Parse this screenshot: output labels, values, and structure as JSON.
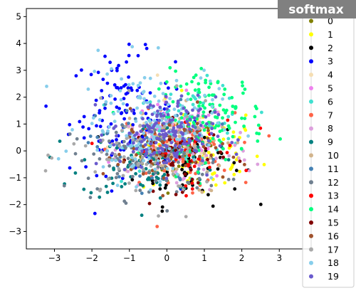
{
  "chart_data": {
    "type": "scatter",
    "title": "softmax",
    "xlabel": "",
    "ylabel": "",
    "xlim": [
      -3.75,
      3.85
    ],
    "ylim": [
      -3.65,
      5.3
    ],
    "xticks": [
      -3,
      -2,
      -1,
      0,
      1,
      2,
      3
    ],
    "yticks": [
      -3,
      -2,
      -1,
      0,
      1,
      2,
      3,
      4,
      5
    ],
    "grid": false,
    "legend_placement": "right",
    "series": [
      {
        "name": "0",
        "color": "#808000",
        "center": [
          0.2,
          0.0
        ],
        "spread": [
          0.55,
          0.6
        ],
        "count": 70
      },
      {
        "name": "1",
        "color": "#ffff00",
        "center": [
          0.9,
          0.0
        ],
        "spread": [
          0.8,
          0.9
        ],
        "count": 70
      },
      {
        "name": "2",
        "color": "#000000",
        "center": [
          0.6,
          -0.4
        ],
        "spread": [
          0.7,
          0.8
        ],
        "count": 70
      },
      {
        "name": "3",
        "color": "#0000ff",
        "center": [
          -1.2,
          1.4
        ],
        "spread": [
          0.7,
          1.1
        ],
        "count": 120
      },
      {
        "name": "4",
        "color": "#f5deb3",
        "center": [
          0.1,
          0.2
        ],
        "spread": [
          0.8,
          0.8
        ],
        "count": 60
      },
      {
        "name": "5",
        "color": "#ee82ee",
        "center": [
          0.3,
          0.3
        ],
        "spread": [
          0.7,
          0.8
        ],
        "count": 50
      },
      {
        "name": "6",
        "color": "#40e0d0",
        "center": [
          0.6,
          0.9
        ],
        "spread": [
          0.8,
          0.8
        ],
        "count": 80
      },
      {
        "name": "7",
        "color": "#ff6347",
        "center": [
          0.2,
          0.0
        ],
        "spread": [
          0.8,
          0.7
        ],
        "count": 60
      },
      {
        "name": "8",
        "color": "#dda0dd",
        "center": [
          0.5,
          0.0
        ],
        "spread": [
          0.9,
          0.8
        ],
        "count": 70
      },
      {
        "name": "9",
        "color": "#008080",
        "center": [
          -0.5,
          -0.4
        ],
        "spread": [
          0.9,
          0.7
        ],
        "count": 80
      },
      {
        "name": "10",
        "color": "#d2b48c",
        "center": [
          0.0,
          0.0
        ],
        "spread": [
          0.8,
          0.8
        ],
        "count": 60
      },
      {
        "name": "11",
        "color": "#4682b4",
        "center": [
          -0.3,
          0.2
        ],
        "spread": [
          0.8,
          0.8
        ],
        "count": 80
      },
      {
        "name": "12",
        "color": "#708090",
        "center": [
          -0.5,
          -0.4
        ],
        "spread": [
          1.0,
          0.7
        ],
        "count": 90
      },
      {
        "name": "13",
        "color": "#ff0000",
        "center": [
          0.4,
          0.0
        ],
        "spread": [
          0.8,
          0.7
        ],
        "count": 40
      },
      {
        "name": "14",
        "color": "#00ff7f",
        "center": [
          1.2,
          1.3
        ],
        "spread": [
          0.7,
          0.8
        ],
        "count": 120
      },
      {
        "name": "15",
        "color": "#800000",
        "center": [
          0.3,
          -0.2
        ],
        "spread": [
          0.6,
          0.6
        ],
        "count": 50
      },
      {
        "name": "16",
        "color": "#a0522d",
        "center": [
          -0.1,
          0.0
        ],
        "spread": [
          0.8,
          0.7
        ],
        "count": 60
      },
      {
        "name": "17",
        "color": "#a9a9a9",
        "center": [
          -0.6,
          -0.2
        ],
        "spread": [
          1.0,
          0.9
        ],
        "count": 70
      },
      {
        "name": "18",
        "color": "#87ceeb",
        "center": [
          -0.5,
          1.0
        ],
        "spread": [
          0.9,
          1.1
        ],
        "count": 150
      },
      {
        "name": "19",
        "color": "#6a5acd",
        "center": [
          -0.1,
          0.6
        ],
        "spread": [
          0.7,
          0.7
        ],
        "count": 160
      }
    ]
  },
  "colors": {
    "banner_background": "#808080",
    "banner_text": "#ffffff",
    "axes": "#000000"
  }
}
